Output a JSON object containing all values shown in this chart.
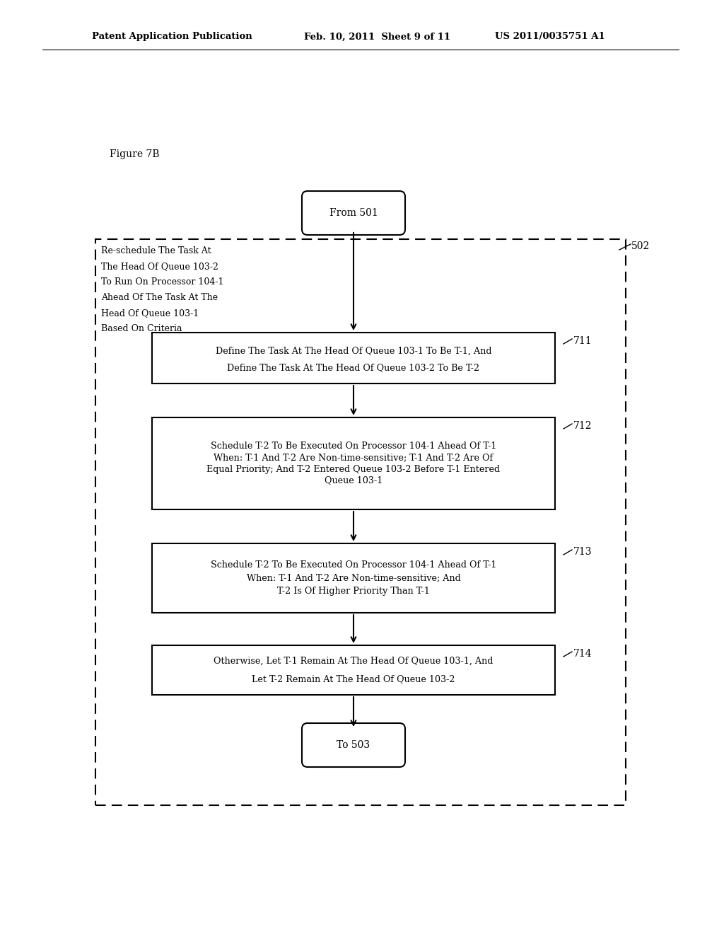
{
  "title_line1": "Patent Application Publication",
  "title_line2": "Feb. 10, 2011  Sheet 9 of 11",
  "title_line3": "US 2011/0035751 A1",
  "figure_label": "Figure 7B",
  "bg_color": "#ffffff",
  "text_color": "#000000",
  "from_label": "From 501",
  "to_label": "To 503",
  "outer_box_label": "502",
  "side_text_lines": [
    "Re-schedule The Task At",
    "The Head Of Queue 103-2",
    "To Run On Processor 104-1",
    "Ahead Of The Task At The",
    "Head Of Queue 103-1",
    "Based On Criteria"
  ],
  "box711_text_line1": "Define The Task At The Head Of Queue 103-1 To Be T-1, And",
  "box711_text_line2": "Define The Task At The Head Of Queue 103-2 To Be T-2",
  "box711_label": "711",
  "box712_text_line1": "Schedule T-2 To Be Executed On Processor 104-1 Ahead Of T-1",
  "box712_text_line2": "When: T-1 And T-2 Are Non-time-sensitive; T-1 And T-2 Are Of",
  "box712_text_line3": "Equal Priority; And T-2 Entered Queue 103-2 Before T-1 Entered",
  "box712_text_line4": "Queue 103-1",
  "box712_label": "712",
  "box713_text_line1": "Schedule T-2 To Be Executed On Processor 104-1 Ahead Of T-1",
  "box713_text_line2": "When: T-1 And T-2 Are Non-time-sensitive; And",
  "box713_text_line3": "T-2 Is Of Higher Priority Than T-1",
  "box713_label": "713",
  "box714_text_line1": "Otherwise, Let T-1 Remain At The Head Of Queue 103-1, And",
  "box714_text_line2": "Let T-2 Remain At The Head Of Queue 103-2",
  "box714_label": "714"
}
